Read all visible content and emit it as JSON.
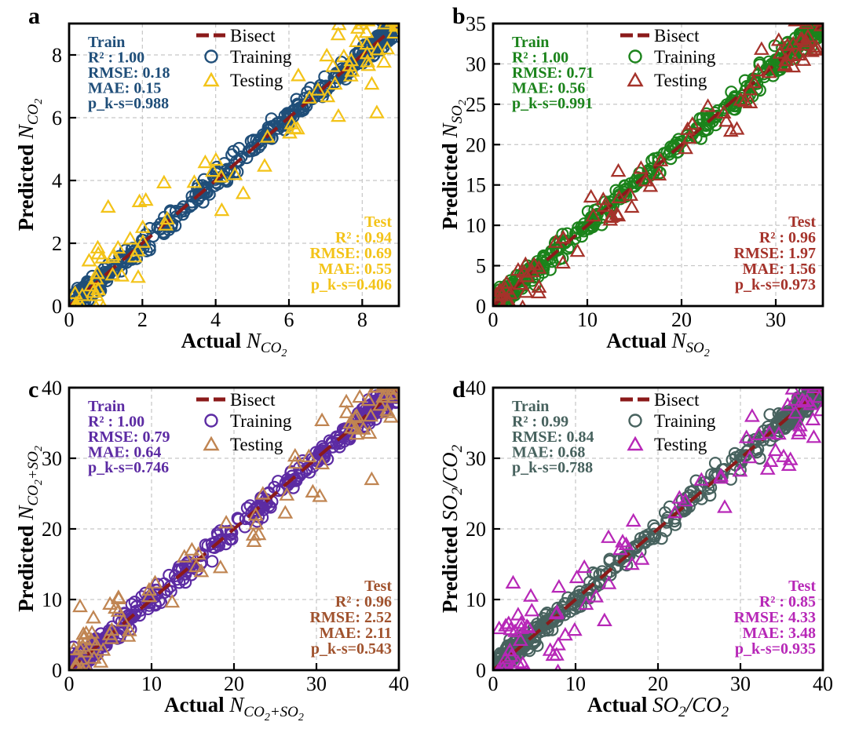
{
  "figure": {
    "background": "#ffffff",
    "axis_color": "#000000",
    "grid_color": "#c6c6c6",
    "tick_label_color": "#000000",
    "legend_text_color": "#000000",
    "bisect_color": "#8b1a1a",
    "legend": {
      "bisect": "Bisect",
      "training": "Training",
      "testing": "Testing"
    }
  },
  "chart_data": [
    {
      "panel_letter": "a",
      "type": "scatter",
      "xlabel": "Actual N_CO2",
      "ylabel": "Predicted N_CO2",
      "xlabel_segments": [
        {
          "t": "Actual ",
          "b": true,
          "lvl": 0
        },
        {
          "t": "N",
          "i": true,
          "lvl": 0
        },
        {
          "t": "CO",
          "i": true,
          "lvl": 1
        },
        {
          "t": "2",
          "i": true,
          "lvl": 2
        }
      ],
      "ylabel_segments": [
        {
          "t": "Predicted ",
          "b": true,
          "lvl": 0
        },
        {
          "t": "N",
          "i": true,
          "lvl": 0
        },
        {
          "t": "CO",
          "i": true,
          "lvl": 1
        },
        {
          "t": "2",
          "i": true,
          "lvl": 2
        }
      ],
      "axis_min": 0,
      "axis_max": 9,
      "xticks": [
        0,
        2,
        4,
        6,
        8
      ],
      "yticks": [
        0,
        2,
        4,
        6,
        8
      ],
      "grid": true,
      "legend_position": "top-center",
      "train": {
        "label": "Train",
        "color": "#1f4e79",
        "r2": "1.00",
        "rmse": "0.18",
        "mae": "0.15",
        "p_ks": "0.988",
        "n_points": 430
      },
      "test": {
        "label": "Test",
        "color": "#f3c318",
        "r2": "0.94",
        "rmse": "0.69",
        "mae": "0.55",
        "p_ks": "0.406",
        "n_points": 88
      },
      "seed": 101
    },
    {
      "panel_letter": "b",
      "type": "scatter",
      "xlabel": "Actual N_SO2",
      "ylabel": "Predicted N_SO2",
      "xlabel_segments": [
        {
          "t": "Actual ",
          "b": true,
          "lvl": 0
        },
        {
          "t": "N",
          "i": true,
          "lvl": 0
        },
        {
          "t": "SO",
          "i": true,
          "lvl": 1
        },
        {
          "t": "2",
          "i": true,
          "lvl": 2
        }
      ],
      "ylabel_segments": [
        {
          "t": "Predicted ",
          "b": true,
          "lvl": 0
        },
        {
          "t": "N",
          "i": true,
          "lvl": 0
        },
        {
          "t": "SO",
          "i": true,
          "lvl": 1
        },
        {
          "t": "2",
          "i": true,
          "lvl": 2
        }
      ],
      "axis_min": 0,
      "axis_max": 35,
      "xticks": [
        0,
        10,
        20,
        30
      ],
      "yticks": [
        0,
        5,
        10,
        15,
        20,
        25,
        30,
        35
      ],
      "grid": true,
      "legend_position": "top-center",
      "train": {
        "label": "Train",
        "color": "#1b831b",
        "r2": "1.00",
        "rmse": "0.71",
        "mae": "0.56",
        "p_ks": "0.991",
        "n_points": 430
      },
      "test": {
        "label": "Test",
        "color": "#a5322a",
        "r2": "0.96",
        "rmse": "1.97",
        "mae": "1.56",
        "p_ks": "0.973",
        "n_points": 88
      },
      "seed": 202
    },
    {
      "panel_letter": "c",
      "type": "scatter",
      "xlabel": "Actual N_CO2+SO2",
      "ylabel": "Predicted N_CO2+SO2",
      "xlabel_segments": [
        {
          "t": "Actual ",
          "b": true,
          "lvl": 0
        },
        {
          "t": "N",
          "i": true,
          "lvl": 0
        },
        {
          "t": "CO",
          "i": true,
          "lvl": 1
        },
        {
          "t": "2",
          "i": true,
          "lvl": 2
        },
        {
          "t": "+SO",
          "i": true,
          "lvl": 1
        },
        {
          "t": "2",
          "i": true,
          "lvl": 2
        }
      ],
      "ylabel_segments": [
        {
          "t": "Predicted ",
          "b": true,
          "lvl": 0
        },
        {
          "t": "N",
          "i": true,
          "lvl": 0
        },
        {
          "t": "CO",
          "i": true,
          "lvl": 1
        },
        {
          "t": "2",
          "i": true,
          "lvl": 2
        },
        {
          "t": "+SO",
          "i": true,
          "lvl": 1
        },
        {
          "t": "2",
          "i": true,
          "lvl": 2
        }
      ],
      "axis_min": 0,
      "axis_max": 40,
      "xticks": [
        0,
        10,
        20,
        30,
        40
      ],
      "yticks": [
        0,
        10,
        20,
        30,
        40
      ],
      "grid": true,
      "legend_position": "top-center",
      "train": {
        "label": "Train",
        "color": "#5c2ba3",
        "r2": "1.00",
        "rmse": "0.79",
        "mae": "0.64",
        "p_ks": "0.746",
        "n_points": 430
      },
      "test": {
        "label": "Test",
        "color": "#c08552",
        "text_color": "#a0522d",
        "r2": "0.96",
        "rmse": "2.52",
        "mae": "2.11",
        "p_ks": "0.543",
        "n_points": 88
      },
      "seed": 303
    },
    {
      "panel_letter": "d",
      "type": "scatter",
      "xlabel": "Actual SO2/CO2",
      "ylabel": "Predicted SO2/CO2",
      "xlabel_segments": [
        {
          "t": "Actual ",
          "b": true,
          "lvl": 0
        },
        {
          "t": "SO",
          "i": true,
          "lvl": 0
        },
        {
          "t": "2",
          "i": true,
          "lvl": 1
        },
        {
          "t": "/CO",
          "i": true,
          "lvl": 0
        },
        {
          "t": "2",
          "i": true,
          "lvl": 1
        }
      ],
      "ylabel_segments": [
        {
          "t": "Predicted ",
          "b": true,
          "lvl": 0
        },
        {
          "t": "SO",
          "i": true,
          "lvl": 0
        },
        {
          "t": "2",
          "i": true,
          "lvl": 1
        },
        {
          "t": "/CO",
          "i": true,
          "lvl": 0
        },
        {
          "t": "2",
          "i": true,
          "lvl": 1
        }
      ],
      "axis_min": 0,
      "axis_max": 40,
      "xticks": [
        0,
        10,
        20,
        30,
        40
      ],
      "yticks": [
        0,
        10,
        20,
        30,
        40
      ],
      "grid": true,
      "legend_position": "top-center",
      "train": {
        "label": "Train",
        "color": "#47625e",
        "r2": "0.99",
        "rmse": "0.84",
        "mae": "0.68",
        "p_ks": "0.788",
        "n_points": 430
      },
      "test": {
        "label": "Test",
        "color": "#b727b7",
        "r2": "0.85",
        "rmse": "4.33",
        "mae": "3.48",
        "p_ks": "0.935",
        "n_points": 88
      },
      "seed": 404
    }
  ],
  "stat_line_format": {
    "r2_prefix": "R² : ",
    "rmse_prefix": "RMSE: ",
    "mae_prefix": "MAE: ",
    "p_ks_prefix": "p_k-s="
  }
}
